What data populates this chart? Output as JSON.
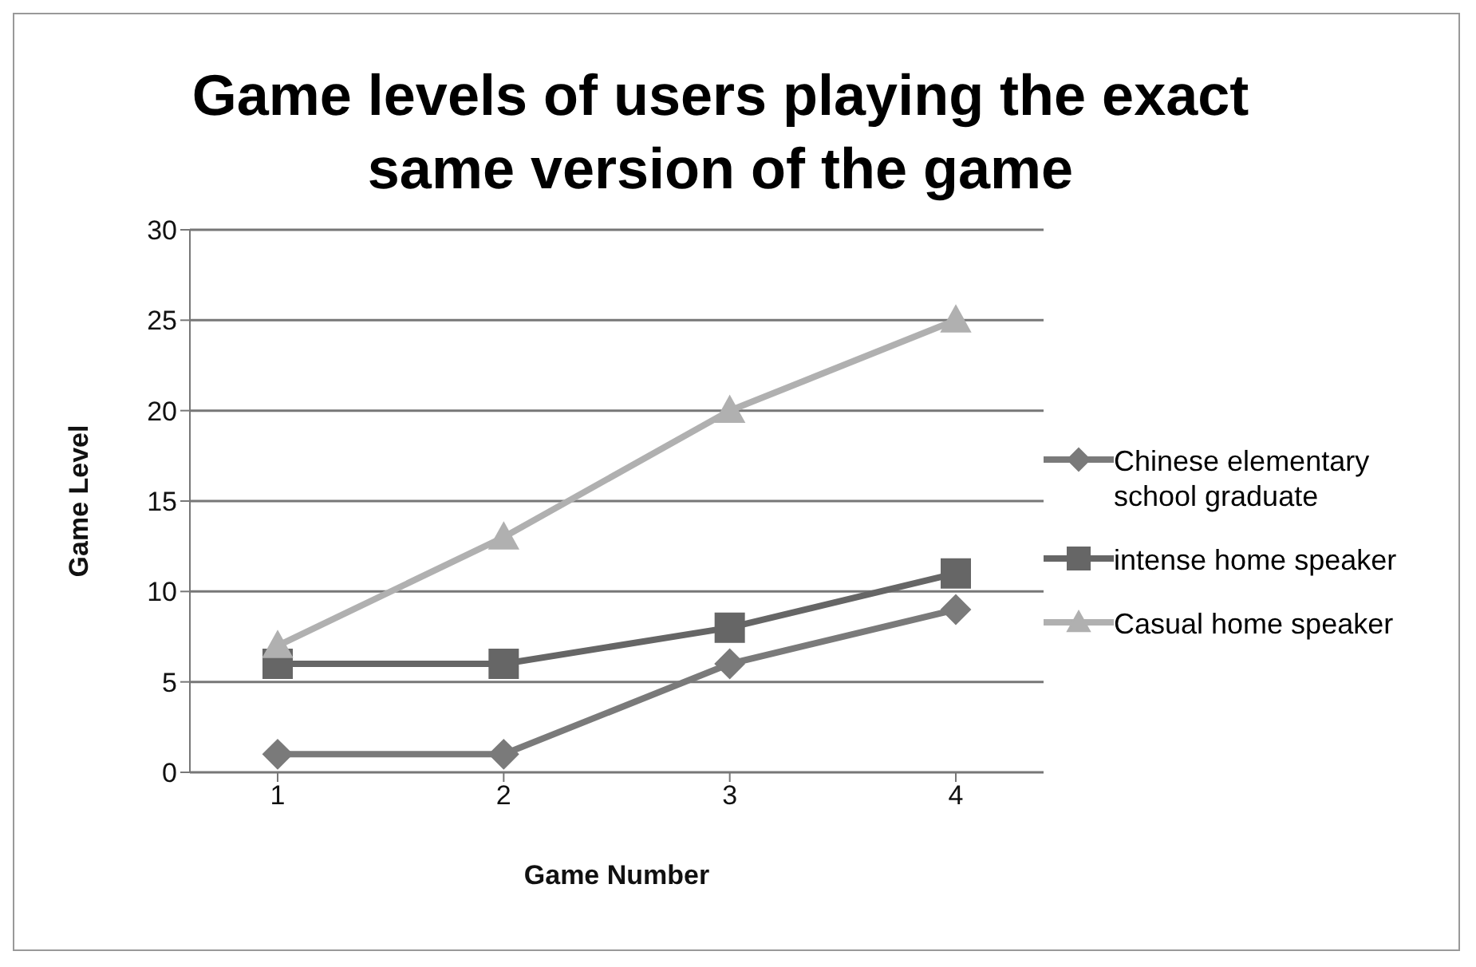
{
  "chart_data": {
    "type": "line",
    "title": "Game levels of users playing the exact same version of the game",
    "xlabel": "Game Number",
    "ylabel": "Game Level",
    "categories": [
      "1",
      "2",
      "3",
      "4"
    ],
    "series": [
      {
        "name": "Chinese elementary school graduate",
        "color": "#7a7a7a",
        "marker": "diamond",
        "values": [
          1,
          1,
          6,
          9
        ]
      },
      {
        "name": "intense home speaker",
        "color": "#666666",
        "marker": "square",
        "values": [
          6,
          6,
          8,
          11
        ]
      },
      {
        "name": "Casual home speaker",
        "color": "#b0b0b0",
        "marker": "triangle",
        "values": [
          7,
          13,
          20,
          25
        ]
      }
    ],
    "ylim": [
      0,
      30
    ],
    "yticks": [
      0,
      5,
      10,
      15,
      20,
      25,
      30
    ],
    "grid": "y",
    "legend": "right",
    "line_style": "solid"
  }
}
